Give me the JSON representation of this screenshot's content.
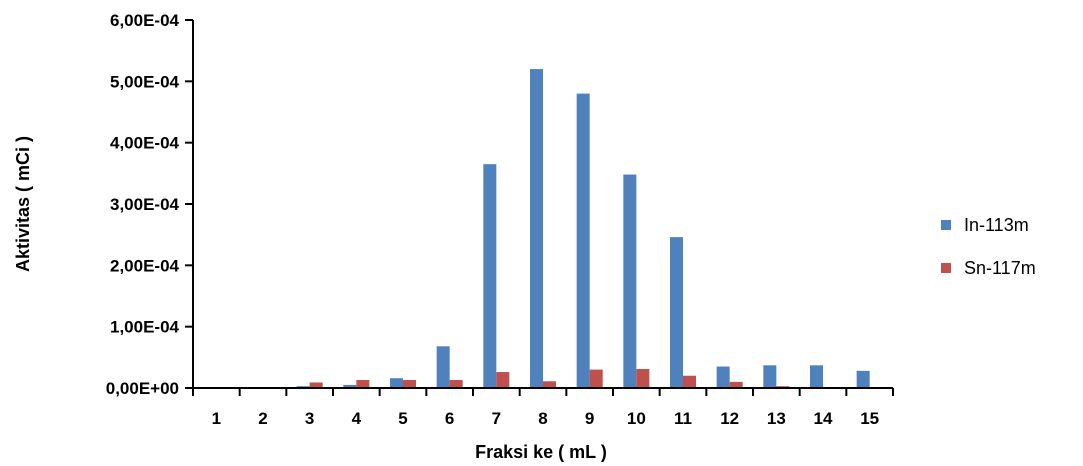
{
  "chart_data": {
    "type": "bar",
    "title": "",
    "xlabel": "Fraksi ke ( mL )",
    "ylabel": "Aktivitas ( mCi )",
    "categories": [
      "1",
      "2",
      "3",
      "4",
      "5",
      "6",
      "7",
      "8",
      "9",
      "10",
      "11",
      "12",
      "13",
      "14",
      "15"
    ],
    "ylim": [
      0,
      0.0006
    ],
    "yticks": [
      0,
      0.0001,
      0.0002,
      0.0003,
      0.0004,
      0.0005,
      0.0006
    ],
    "ytick_labels": [
      "0,00E+00",
      "1,00E-04",
      "2,00E-04",
      "3,00E-04",
      "4,00E-04",
      "5,00E-04",
      "6,00E-04"
    ],
    "grid": false,
    "legend_position": "right",
    "series": [
      {
        "name": "In-113m",
        "color": "#4F81BD",
        "values": [
          0,
          0,
          3e-06,
          5e-06,
          1.6e-05,
          6.8e-05,
          0.000365,
          0.00052,
          0.00048,
          0.000348,
          0.000246,
          3.5e-05,
          3.7e-05,
          3.7e-05,
          2.8e-05
        ]
      },
      {
        "name": "Sn-117m",
        "color": "#C0504D",
        "values": [
          0,
          0,
          9e-06,
          1.3e-05,
          1.3e-05,
          1.3e-05,
          2.6e-05,
          1.1e-05,
          3e-05,
          3.1e-05,
          2e-05,
          1e-05,
          3e-06,
          0,
          0
        ]
      }
    ]
  }
}
